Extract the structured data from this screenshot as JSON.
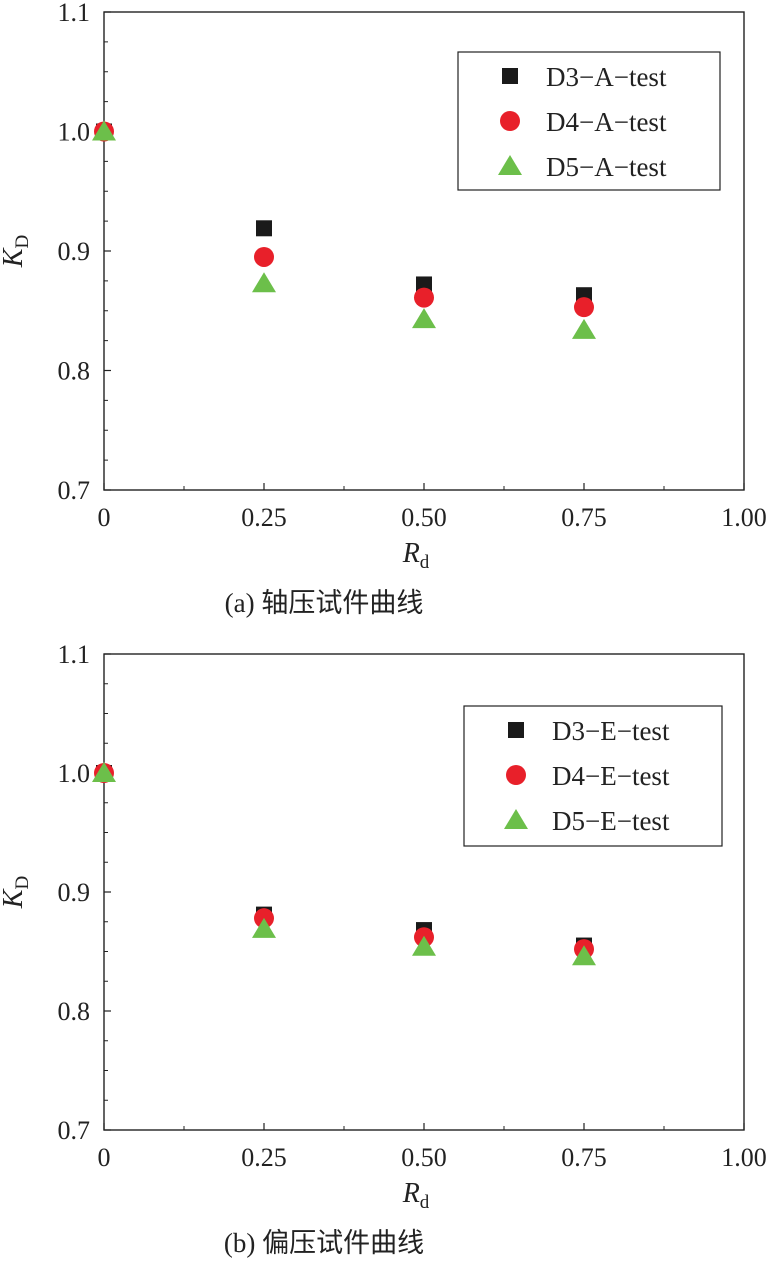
{
  "chart_data": [
    {
      "type": "scatter",
      "title": "",
      "xlabel": "R",
      "xlabel_sub": "d",
      "ylabel": "K",
      "ylabel_sub": "D",
      "xlim": [
        0,
        1.0
      ],
      "ylim": [
        0.7,
        1.1
      ],
      "x_ticks": [
        0,
        0.25,
        0.5,
        0.75,
        1.0
      ],
      "x_tick_labels": [
        "0",
        "0.25",
        "0.50",
        "0.75",
        "1.00"
      ],
      "y_ticks": [
        0.7,
        0.8,
        0.9,
        1.0,
        1.1
      ],
      "y_tick_labels": [
        "0.7",
        "0.8",
        "0.9",
        "1.0",
        "1.1"
      ],
      "grid": false,
      "legend_position": "top-right",
      "caption": "(a) 轴压试件曲线",
      "series": [
        {
          "name": "D3−A−test",
          "marker": "square",
          "color": "#1a1a1a",
          "x": [
            0,
            0.25,
            0.5,
            0.75
          ],
          "y": [
            1.0,
            0.919,
            0.872,
            0.863
          ]
        },
        {
          "name": "D4−A−test",
          "marker": "circle",
          "color": "#e8202a",
          "x": [
            0,
            0.25,
            0.5,
            0.75
          ],
          "y": [
            1.0,
            0.895,
            0.861,
            0.853
          ]
        },
        {
          "name": "D5−A−test",
          "marker": "triangle",
          "color": "#6cbf4a",
          "x": [
            0,
            0.25,
            0.5,
            0.75
          ],
          "y": [
            1.0,
            0.873,
            0.843,
            0.834
          ]
        }
      ]
    },
    {
      "type": "scatter",
      "title": "",
      "xlabel": "R",
      "xlabel_sub": "d",
      "ylabel": "K",
      "ylabel_sub": "D",
      "xlim": [
        0,
        1.0
      ],
      "ylim": [
        0.7,
        1.1
      ],
      "x_ticks": [
        0,
        0.25,
        0.5,
        0.75,
        1.0
      ],
      "x_tick_labels": [
        "0",
        "0.25",
        "0.50",
        "0.75",
        "1.00"
      ],
      "y_ticks": [
        0.7,
        0.8,
        0.9,
        1.0,
        1.1
      ],
      "y_tick_labels": [
        "0.7",
        "0.8",
        "0.9",
        "1.0",
        "1.1"
      ],
      "grid": false,
      "legend_position": "top-right",
      "caption": "(b) 偏压试件曲线",
      "series": [
        {
          "name": "D3−E−test",
          "marker": "square",
          "color": "#1a1a1a",
          "x": [
            0,
            0.25,
            0.5,
            0.75
          ],
          "y": [
            1.0,
            0.881,
            0.868,
            0.855
          ]
        },
        {
          "name": "D4−E−test",
          "marker": "circle",
          "color": "#e8202a",
          "x": [
            0,
            0.25,
            0.5,
            0.75
          ],
          "y": [
            1.0,
            0.878,
            0.862,
            0.852
          ]
        },
        {
          "name": "D5−E−test",
          "marker": "triangle",
          "color": "#6cbf4a",
          "x": [
            0,
            0.25,
            0.5,
            0.75
          ],
          "y": [
            1.0,
            0.869,
            0.854,
            0.846
          ]
        }
      ]
    }
  ]
}
